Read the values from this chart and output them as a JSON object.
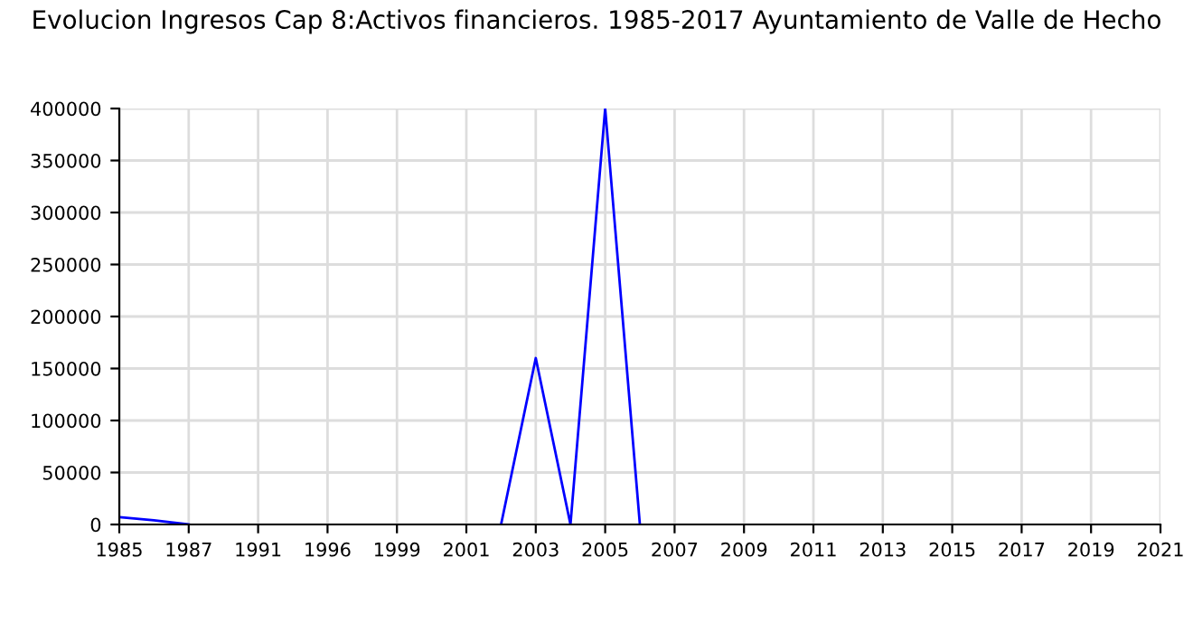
{
  "chart_data": {
    "type": "line",
    "title": "Evolucion Ingresos Cap 8:Activos financieros. 1985-2017 Ayuntamiento de Valle de Hecho",
    "categories": [
      "1985",
      null,
      "1987",
      null,
      "1991",
      null,
      "1996",
      null,
      "1999",
      null,
      "2001",
      null,
      "2003",
      null,
      "2005",
      null,
      "2007",
      null,
      "2009",
      null,
      "2011",
      null,
      "2013",
      null,
      "2015",
      null,
      "2017",
      null,
      "2019",
      null,
      "2021"
    ],
    "series": [
      {
        "color": "#0000ff",
        "values": [
          7000,
          4000,
          0,
          null,
          null,
          null,
          null,
          null,
          null,
          null,
          null,
          0,
          160000,
          0,
          400000,
          0,
          null,
          null,
          null,
          null,
          null,
          null,
          null,
          null,
          null,
          null,
          null,
          null,
          null,
          null,
          null
        ]
      }
    ],
    "ylim": [
      0,
      400000
    ],
    "yticks": [
      0,
      50000,
      100000,
      150000,
      200000,
      250000,
      300000,
      350000,
      400000
    ],
    "grid": true,
    "legend": false,
    "marker": "none",
    "line_style": "solid"
  }
}
